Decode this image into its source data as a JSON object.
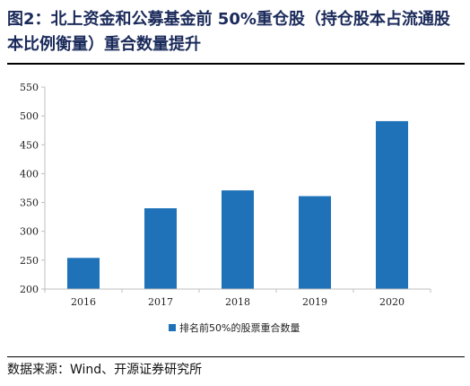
{
  "figure": {
    "title": "图2：北上资金和公募基金前 50%重仓股（持仓股本占流通股本比例衡量）重合数量提升",
    "source": "数据来源：Wind、开源证券研究所"
  },
  "colors": {
    "bar": "#1f72b8",
    "title": "#1a2a5a",
    "axis": "#bfbfbf"
  },
  "chart_data": {
    "type": "bar",
    "categories": [
      "2016",
      "2017",
      "2018",
      "2019",
      "2020"
    ],
    "series": [
      {
        "name": "排名前50%的股票重合数量",
        "values": [
          254,
          340,
          371,
          361,
          491
        ]
      }
    ],
    "ylim": [
      200,
      550
    ],
    "yticks": [
      "200",
      "250",
      "300",
      "350",
      "400",
      "450",
      "500",
      "550"
    ],
    "grid": false,
    "legend_position": "bottom-center",
    "title": "",
    "xlabel": "",
    "ylabel": ""
  }
}
